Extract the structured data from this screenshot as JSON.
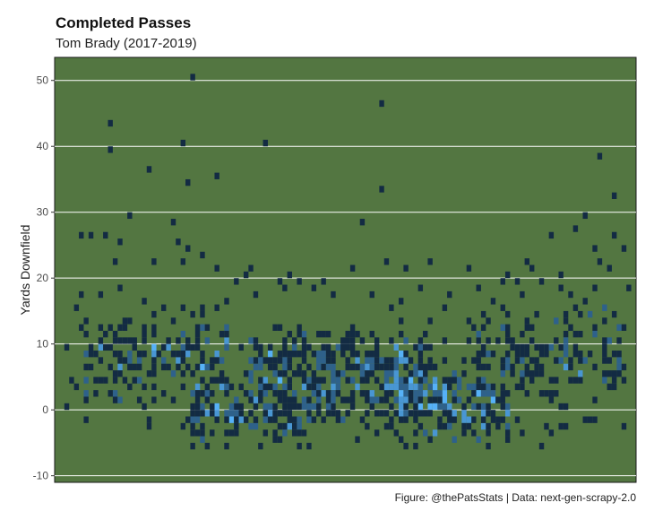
{
  "chart_data": {
    "type": "heatmap",
    "title": "Completed Passes",
    "subtitle": "Tom Brady (2017-2019)",
    "ylabel": "Yards Downfield",
    "caption": "Figure: @thePatsStats | Data: next-gen-scrapy-2.0",
    "ylim": [
      -11,
      53.5
    ],
    "yticks": [
      -10,
      0,
      10,
      20,
      30,
      40,
      50
    ],
    "xlim": [
      -30,
      30
    ],
    "grid": "horizontal",
    "colors": {
      "panel": "#537641",
      "grid": "#ffffff",
      "low": "#132b43",
      "high": "#56b1f7",
      "text": "#4d4d4d"
    },
    "points": [
      [
        -27.3,
        26
      ],
      [
        -26.1,
        26
      ],
      [
        -24.4,
        43
      ],
      [
        -24.4,
        39
      ],
      [
        -23.2,
        25.9
      ],
      [
        -22.5,
        29.6
      ],
      [
        -20.4,
        36.5
      ],
      [
        -18.0,
        28.3
      ],
      [
        -17.5,
        25.3
      ],
      [
        -16.8,
        40.6
      ],
      [
        -16.4,
        34.8
      ],
      [
        -15.6,
        50.5
      ],
      [
        -13.5,
        35.8
      ],
      [
        -8.2,
        40.6
      ],
      [
        3.5,
        46.3
      ],
      [
        3.8,
        33.1
      ],
      [
        1.5,
        28.8
      ],
      [
        26.0,
        38.2
      ],
      [
        27.8,
        32.2
      ],
      [
        24.8,
        29.6
      ],
      [
        23.6,
        27.8
      ],
      [
        21.3,
        26.3
      ],
      [
        27.5,
        26.1
      ],
      [
        28.5,
        24.4
      ],
      [
        25.8,
        24.6
      ],
      [
        26.4,
        22.4
      ],
      [
        27.2,
        21.0
      ],
      [
        -24.9,
        26
      ],
      [
        -23.8,
        22.5
      ],
      [
        -19.9,
        22.4
      ],
      [
        -17.0,
        22.5
      ],
      [
        -16.4,
        24.5
      ],
      [
        -14.8,
        23.8
      ],
      [
        -13.3,
        21.5
      ],
      [
        -11.1,
        19.7
      ],
      [
        -10.2,
        20.6
      ],
      [
        -9.7,
        21.4
      ],
      [
        -5.6,
        20.6
      ],
      [
        -4.6,
        19.8
      ],
      [
        -2.1,
        19.5
      ],
      [
        0.8,
        21.2
      ],
      [
        4.0,
        22.0
      ],
      [
        6.4,
        21.5
      ],
      [
        8.8,
        22.2
      ],
      [
        12.5,
        21.5
      ],
      [
        16.8,
        20.8
      ],
      [
        17.8,
        19.5
      ],
      [
        18.5,
        22.4
      ],
      [
        19.4,
        21.2
      ],
      [
        16.3,
        19.0
      ],
      [
        20.1,
        19.5
      ],
      [
        22.0,
        20.0
      ],
      [
        25.8,
        18.5
      ],
      [
        29.0,
        18.5
      ],
      [
        30.5,
        18.0
      ],
      [
        -27.5,
        17.5
      ],
      [
        -25.2,
        17.0
      ],
      [
        -23.5,
        18.0
      ],
      [
        -20.6,
        16.0
      ],
      [
        -17.0,
        15.8
      ],
      [
        -14.7,
        15.5
      ],
      [
        -12.3,
        16.2
      ],
      [
        -9.5,
        17.8
      ],
      [
        -7.0,
        19.0
      ],
      [
        -6.2,
        18.5
      ],
      [
        -3.5,
        18.0
      ],
      [
        -1.2,
        17.5
      ],
      [
        2.5,
        17.0
      ],
      [
        5.5,
        16.8
      ],
      [
        7.8,
        18.5
      ],
      [
        10.5,
        17.9
      ],
      [
        13.5,
        18.5
      ],
      [
        15.0,
        16.5
      ],
      [
        18.3,
        17.0
      ],
      [
        22.3,
        18.0
      ],
      [
        23.2,
        17.6
      ],
      [
        24.5,
        16.0
      ],
      [
        26.5,
        15.5
      ],
      [
        27.9,
        14.5
      ]
    ],
    "clusters": [
      {
        "x": [
          -27,
          -12
        ],
        "y": [
          0,
          16
        ],
        "n": 150
      },
      {
        "x": [
          -16,
          -3
        ],
        "y": [
          -6,
          6
        ],
        "n": 170
      },
      {
        "x": [
          -10,
          9
        ],
        "y": [
          0,
          14
        ],
        "n": 200
      },
      {
        "x": [
          -3,
          12
        ],
        "y": [
          -3,
          9
        ],
        "n": 150
      },
      {
        "x": [
          5,
          17
        ],
        "y": [
          -6,
          6
        ],
        "n": 150
      },
      {
        "x": [
          12,
          29
        ],
        "y": [
          0,
          16
        ],
        "n": 150
      },
      {
        "x": [
          -29,
          29
        ],
        "y": [
          -8,
          18
        ],
        "n": 140
      }
    ]
  }
}
